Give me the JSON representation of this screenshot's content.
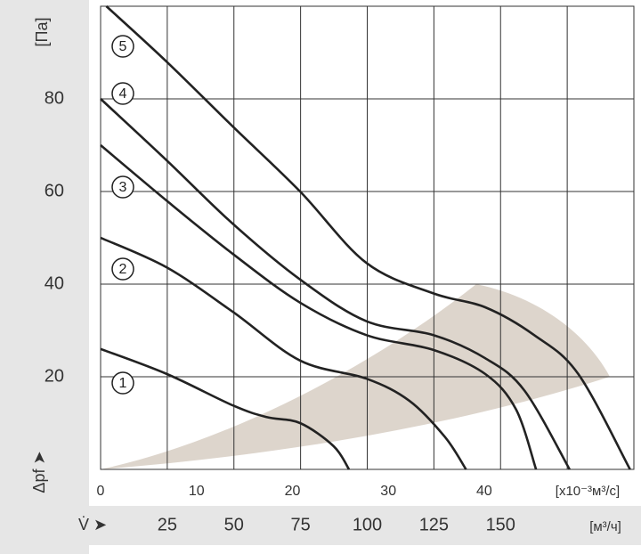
{
  "chart_data": {
    "type": "line",
    "x_label": "[x10⁻³м³/с]",
    "y_label": "Δpf ➤",
    "y_unit": "[Па]",
    "x2_symbol": "V̇ ➤",
    "x2_label": "[м³/ч]",
    "xlim": [
      0,
      55.6
    ],
    "xticks": [
      0,
      10,
      20,
      30,
      40
    ],
    "x2lim": [
      0,
      200
    ],
    "x2ticks": [
      25,
      50,
      75,
      100,
      125,
      150
    ],
    "ylim": [
      0,
      100
    ],
    "yticks": [
      20,
      40,
      60,
      80
    ],
    "grid": true,
    "color": "#222222",
    "series": [
      {
        "name": "1",
        "x": [
          0,
          6.9,
          13.8,
          17.3,
          20.8,
          24.3,
          25.9
        ],
        "values": [
          26,
          20.6,
          13.8,
          11.3,
          10,
          5,
          0
        ]
      },
      {
        "name": "2",
        "x": [
          0,
          6.9,
          13.8,
          20.8,
          27.7,
          32.2,
          35.9,
          38.1
        ],
        "values": [
          50,
          43.6,
          34,
          23.5,
          19.6,
          14.8,
          7,
          0
        ]
      },
      {
        "name": "3",
        "x": [
          0,
          6.9,
          13.8,
          20.8,
          27.7,
          34.7,
          40.1,
          43.3,
          45.4
        ],
        "values": [
          70,
          58,
          46.5,
          36,
          29,
          25.8,
          20.6,
          13,
          0
        ]
      },
      {
        "name": "4",
        "x": [
          0,
          6.9,
          13.8,
          20.8,
          27.7,
          34.7,
          40.1,
          44.2,
          48.9
        ],
        "values": [
          80,
          66.7,
          53,
          41,
          32,
          29,
          24,
          17,
          0
        ]
      },
      {
        "name": "5",
        "x": [
          0.6,
          6.9,
          13.8,
          20.8,
          27.7,
          34.7,
          40.1,
          45.2,
          49.8,
          55.2
        ],
        "values": [
          100,
          88,
          74,
          60,
          44.6,
          38,
          35,
          29,
          20.6,
          0
        ]
      }
    ]
  }
}
